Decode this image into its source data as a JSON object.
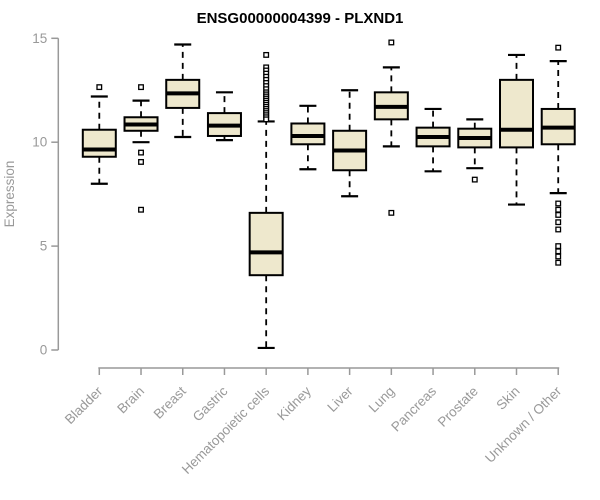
{
  "chart_data": {
    "type": "boxplot",
    "title": "ENSG00000004399 - PLXND1",
    "xlabel": "",
    "ylabel": "Expression",
    "ylim": [
      0,
      15
    ],
    "yticks": [
      0,
      5,
      10,
      15
    ],
    "grid": false,
    "legend": "none",
    "x_label_rotation_deg": 45,
    "colors": {
      "box_fill": "#EEE8CD",
      "box_stroke": "#000000",
      "axis": "#999999",
      "tick_text": "#999999",
      "title_text": "#000000",
      "background": "#ffffff"
    },
    "categories": [
      "Bladder",
      "Brain",
      "Breast",
      "Gastric",
      "Hematopoietic cells",
      "Kidney",
      "Liver",
      "Lung",
      "Pancreas",
      "Prostate",
      "Skin",
      "Unknown / Other"
    ],
    "series": [
      {
        "name": "Bladder",
        "whisker_low": 8.0,
        "q1": 9.3,
        "median": 9.65,
        "q3": 10.6,
        "whisker_high": 12.2,
        "outliers": [
          12.65
        ]
      },
      {
        "name": "Brain",
        "whisker_low": 10.0,
        "q1": 10.55,
        "median": 10.85,
        "q3": 11.2,
        "whisker_high": 12.0,
        "outliers": [
          12.65,
          9.5,
          9.05,
          6.75
        ]
      },
      {
        "name": "Breast",
        "whisker_low": 10.25,
        "q1": 11.65,
        "median": 12.35,
        "q3": 13.0,
        "whisker_high": 14.7,
        "outliers": []
      },
      {
        "name": "Gastric",
        "whisker_low": 10.1,
        "q1": 10.3,
        "median": 10.8,
        "q3": 11.4,
        "whisker_high": 12.4,
        "outliers": []
      },
      {
        "name": "Hematopoietic cells",
        "whisker_low": 0.1,
        "q1": 3.6,
        "median": 4.7,
        "q3": 6.6,
        "whisker_high": 11.0,
        "outliers": [
          14.2,
          13.6,
          13.45,
          13.3,
          13.15,
          13.0,
          12.85,
          12.7,
          12.55,
          12.4,
          12.3,
          12.2,
          12.1,
          12.0,
          11.9,
          11.8,
          11.7,
          11.6,
          11.5,
          11.4,
          11.3,
          11.2,
          11.1
        ]
      },
      {
        "name": "Kidney",
        "whisker_low": 8.7,
        "q1": 9.9,
        "median": 10.3,
        "q3": 10.9,
        "whisker_high": 11.75,
        "outliers": []
      },
      {
        "name": "Liver",
        "whisker_low": 7.4,
        "q1": 8.65,
        "median": 9.6,
        "q3": 10.55,
        "whisker_high": 12.5,
        "outliers": []
      },
      {
        "name": "Lung",
        "whisker_low": 9.8,
        "q1": 11.1,
        "median": 11.7,
        "q3": 12.4,
        "whisker_high": 13.6,
        "outliers": [
          14.8,
          6.6
        ]
      },
      {
        "name": "Pancreas",
        "whisker_low": 8.6,
        "q1": 9.8,
        "median": 10.25,
        "q3": 10.7,
        "whisker_high": 11.6,
        "outliers": []
      },
      {
        "name": "Prostate",
        "whisker_low": 8.75,
        "q1": 9.75,
        "median": 10.2,
        "q3": 10.65,
        "whisker_high": 11.1,
        "outliers": [
          8.2
        ]
      },
      {
        "name": "Skin",
        "whisker_low": 7.0,
        "q1": 9.75,
        "median": 10.6,
        "q3": 13.0,
        "whisker_high": 14.2,
        "outliers": []
      },
      {
        "name": "Unknown / Other",
        "whisker_low": 7.55,
        "q1": 9.9,
        "median": 10.7,
        "q3": 11.6,
        "whisker_high": 13.9,
        "outliers": [
          14.55,
          7.05,
          6.75,
          6.5,
          6.15,
          5.8,
          5.0,
          4.75,
          4.5,
          4.2
        ]
      }
    ]
  }
}
